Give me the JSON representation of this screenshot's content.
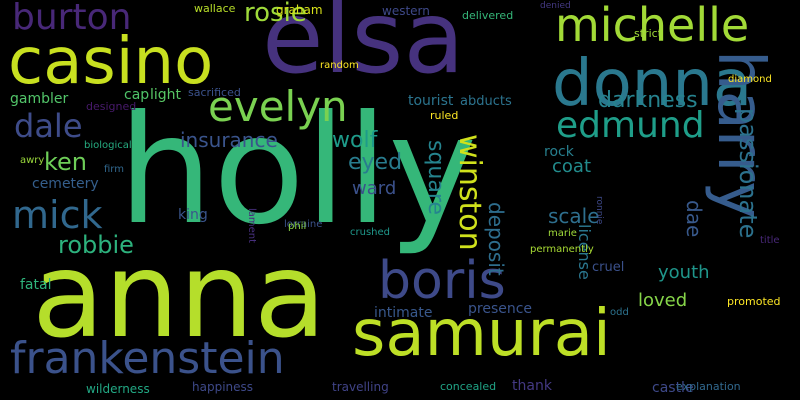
{
  "words": [
    {
      "text": "holly",
      "size": 150,
      "color": "#35b779"
    },
    {
      "text": "anna",
      "size": 118,
      "color": "#b5de2b"
    },
    {
      "text": "elsa",
      "size": 100,
      "color": "#46327e"
    },
    {
      "text": "casino",
      "size": 64,
      "color": "#c8e020"
    },
    {
      "text": "samurai",
      "size": 64,
      "color": "#bddf26"
    },
    {
      "text": "donna",
      "size": 64,
      "color": "#2a788e"
    },
    {
      "text": "harry",
      "size": 64,
      "color": "#365c8d"
    },
    {
      "text": "boris",
      "size": 52,
      "color": "#3e4a89"
    },
    {
      "text": "frankenstein",
      "size": 44,
      "color": "#3b528b"
    },
    {
      "text": "michelle",
      "size": 46,
      "color": "#a2da37"
    },
    {
      "text": "evelyn",
      "size": 42,
      "color": "#7ad151"
    },
    {
      "text": "burton",
      "size": 36,
      "color": "#482878"
    },
    {
      "text": "edmund",
      "size": 36,
      "color": "#1f9e89"
    },
    {
      "text": "mick",
      "size": 38,
      "color": "#31688e"
    },
    {
      "text": "dale",
      "size": 32,
      "color": "#3e4c8a"
    },
    {
      "text": "winston",
      "size": 30,
      "color": "#d0e11c"
    },
    {
      "text": "rosie",
      "size": 26,
      "color": "#9fda3a"
    },
    {
      "text": "robbie",
      "size": 24,
      "color": "#2db27d"
    },
    {
      "text": "ken",
      "size": 24,
      "color": "#6ece58"
    },
    {
      "text": "passionate",
      "size": 24,
      "color": "#2c728e"
    },
    {
      "text": "darkness",
      "size": 22,
      "color": "#26828e"
    },
    {
      "text": "wolf",
      "size": 22,
      "color": "#1e9b8a"
    },
    {
      "text": "eyed",
      "size": 22,
      "color": "#287c8e"
    },
    {
      "text": "insurance",
      "size": 20,
      "color": "#3a548c"
    },
    {
      "text": "dae",
      "size": 20,
      "color": "#38598c"
    },
    {
      "text": "scale",
      "size": 20,
      "color": "#2e6f8e"
    },
    {
      "text": "square",
      "size": 22,
      "color": "#25848e"
    },
    {
      "text": "deposit",
      "size": 20,
      "color": "#2e6e8e"
    },
    {
      "text": "coat",
      "size": 18,
      "color": "#228c8d"
    },
    {
      "text": "ward",
      "size": 18,
      "color": "#3b518b"
    },
    {
      "text": "license",
      "size": 16,
      "color": "#2a768e"
    },
    {
      "text": "youth",
      "size": 18,
      "color": "#1f968b"
    },
    {
      "text": "loved",
      "size": 18,
      "color": "#86d549"
    },
    {
      "text": "gambler",
      "size": 14,
      "color": "#52c569"
    },
    {
      "text": "cap",
      "size": 14,
      "color": "#4fc46a"
    },
    {
      "text": "light",
      "size": 14,
      "color": "#58c765"
    },
    {
      "text": "tourist",
      "size": 14,
      "color": "#2b748e"
    },
    {
      "text": "abducts",
      "size": 13,
      "color": "#2c738e"
    },
    {
      "text": "rock",
      "size": 14,
      "color": "#277f8e"
    },
    {
      "text": "cemetery",
      "size": 14,
      "color": "#355f8d"
    },
    {
      "text": "king",
      "size": 14,
      "color": "#3a548c"
    },
    {
      "text": "fatal",
      "size": 14,
      "color": "#2fb47c"
    },
    {
      "text": "presence",
      "size": 14,
      "color": "#3a548c"
    },
    {
      "text": "intimate",
      "size": 14,
      "color": "#38588c"
    },
    {
      "text": "happiness",
      "size": 12,
      "color": "#3e4989"
    },
    {
      "text": "travelling",
      "size": 12,
      "color": "#404387"
    },
    {
      "text": "thank",
      "size": 14,
      "color": "#443983"
    },
    {
      "text": "castle",
      "size": 14,
      "color": "#3e4989"
    },
    {
      "text": "wilderness",
      "size": 12,
      "color": "#22a884"
    },
    {
      "text": "cruel",
      "size": 13,
      "color": "#3b518b"
    },
    {
      "text": "promoted",
      "size": 11,
      "color": "#fde725"
    },
    {
      "text": "diamond",
      "size": 10,
      "color": "#fde725"
    },
    {
      "text": "explanation",
      "size": 11,
      "color": "#31688e"
    },
    {
      "text": "concealed",
      "size": 11,
      "color": "#20a486"
    },
    {
      "text": "graham",
      "size": 12,
      "color": "#d8e219"
    },
    {
      "text": "wallace",
      "size": 11,
      "color": "#b8de29"
    },
    {
      "text": "western",
      "size": 12,
      "color": "#3e4989"
    },
    {
      "text": "delivered",
      "size": 11,
      "color": "#35b779"
    },
    {
      "text": "strict",
      "size": 11,
      "color": "#a0da39"
    },
    {
      "text": "random",
      "size": 10,
      "color": "#fde725"
    },
    {
      "text": "ruled",
      "size": 11,
      "color": "#fde725"
    },
    {
      "text": "sacrificed",
      "size": 11,
      "color": "#3b528b"
    },
    {
      "text": "designed",
      "size": 11,
      "color": "#481a6c"
    },
    {
      "text": "biological",
      "size": 10,
      "color": "#26ad81"
    },
    {
      "text": "firm",
      "size": 10,
      "color": "#31688e"
    },
    {
      "text": "awry",
      "size": 10,
      "color": "#9bd93c"
    },
    {
      "text": "lament",
      "size": 10,
      "color": "#472f7d"
    },
    {
      "text": "lorraine",
      "size": 10,
      "color": "#3b528b"
    },
    {
      "text": "phil",
      "size": 10,
      "color": "#8bd646"
    },
    {
      "text": "crushed",
      "size": 10,
      "color": "#1f988b"
    },
    {
      "text": "marie",
      "size": 10,
      "color": "#9fda3a"
    },
    {
      "text": "permanently",
      "size": 10,
      "color": "#a8db34"
    },
    {
      "text": "odd",
      "size": 10,
      "color": "#2c728e"
    },
    {
      "text": "title",
      "size": 10,
      "color": "#482878"
    },
    {
      "text": "ronnie",
      "size": 9,
      "color": "#3e4989"
    },
    {
      "text": "denied",
      "size": 9,
      "color": "#443983"
    }
  ]
}
